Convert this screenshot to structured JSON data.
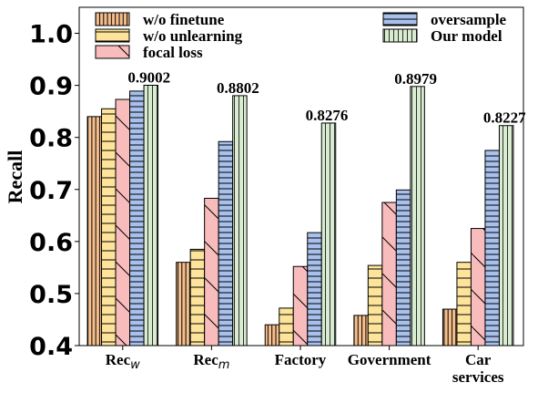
{
  "chart_data": {
    "type": "bar",
    "ylabel": "Recall",
    "ylim": [
      0.4,
      1.05
    ],
    "yticks": [
      "0.4",
      "0.5",
      "0.6",
      "0.7",
      "0.8",
      "0.9",
      "1.0"
    ],
    "categories": [
      {
        "main": "Rec",
        "sub": "w"
      },
      {
        "main": "Rec",
        "sub": "m"
      },
      {
        "main": "Factory",
        "sub": ""
      },
      {
        "main": "Government",
        "sub": ""
      },
      {
        "main": "Car",
        "line2": "services"
      }
    ],
    "series": [
      {
        "name": "w/o finetune",
        "color": "#f5be8c",
        "hatch": "vertical",
        "values": [
          0.84,
          0.56,
          0.44,
          0.458,
          0.47
        ]
      },
      {
        "name": "w/o unlearning",
        "color": "#fde49a",
        "hatch": "horizontal",
        "values": [
          0.855,
          0.585,
          0.472,
          0.554,
          0.56
        ]
      },
      {
        "name": "focal loss",
        "color": "#f9bcbc",
        "hatch": "diagonal",
        "values": [
          0.873,
          0.683,
          0.552,
          0.675,
          0.625
        ]
      },
      {
        "name": "oversample",
        "color": "#a8c0ec",
        "hatch": "dense-horizontal",
        "values": [
          0.889,
          0.792,
          0.617,
          0.699,
          0.775
        ]
      },
      {
        "name": "Our model",
        "color": "#d9ecd1",
        "hatch": "vertical-sparse",
        "values": [
          0.9002,
          0.8802,
          0.8276,
          0.8979,
          0.8227
        ]
      }
    ],
    "data_labels": [
      "0.9002",
      "0.8802",
      "0.8276",
      "0.8979",
      "0.8227"
    ],
    "legend": "top, two columns",
    "grid": false
  }
}
